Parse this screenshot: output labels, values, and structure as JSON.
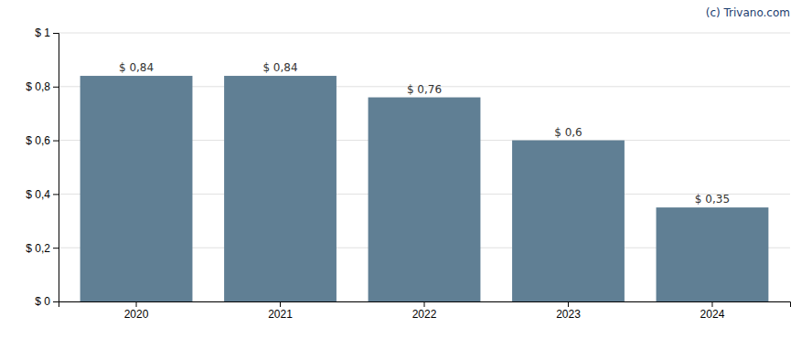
{
  "chart_data": {
    "type": "bar",
    "annotations": [
      "(c) Trivano.com"
    ],
    "categories": [
      "2020",
      "2021",
      "2022",
      "2023",
      "2024"
    ],
    "values": [
      0.84,
      0.84,
      0.76,
      0.6,
      0.35
    ],
    "value_labels": [
      "$ 0,84",
      "$ 0,84",
      "$ 0,76",
      "$ 0,6",
      "$ 0,35"
    ],
    "data_labels": true,
    "color": "#607f94",
    "ylim": [
      0,
      1.0
    ],
    "yticks": [
      {
        "value": 0,
        "label": "$ 0"
      },
      {
        "value": 0.2,
        "label": "$ 0,2"
      },
      {
        "value": 0.4,
        "label": "$ 0,4"
      },
      {
        "value": 0.6,
        "label": "$ 0,6"
      },
      {
        "value": 0.8,
        "label": "$ 0,8"
      },
      {
        "value": 1.0,
        "label": "$ 1"
      }
    ],
    "grid": true
  }
}
